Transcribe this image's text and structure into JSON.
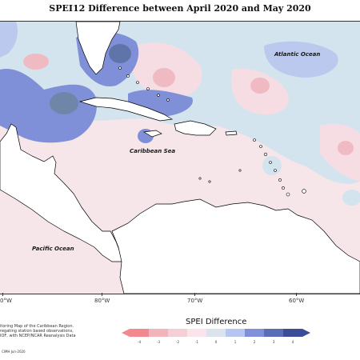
{
  "title": "SPEI12 Difference between April 2020 and May 2020",
  "map": {
    "labels": {
      "atlantic": "Atlantic Ocean",
      "caribbean": "Caribbean Sea",
      "pacific": "Pacific Ocean"
    },
    "longitude_ticks": [
      "0°W",
      "80°W",
      "70°W",
      "60°W"
    ],
    "colors": {
      "dark_blue": "#4a5aa6",
      "blue": "#7f90d8",
      "light_blue": "#bcc9ef",
      "pale_blue": "#d3e4ee",
      "slate": "#6f86a8",
      "pale_pink": "#f6dde3",
      "pink": "#f0bac3",
      "salmon": "#e79aa6",
      "land": "#ffffff",
      "coast": "#000000"
    }
  },
  "legend": {
    "title": "SPEI Difference",
    "ticks": [
      "-4",
      "-3",
      "-2",
      "-1",
      "0",
      "1",
      "2",
      "3",
      "4"
    ],
    "colors": [
      "#f08a8f",
      "#f2b4bb",
      "#f4cfd6",
      "#f8e4e9",
      "#dbe4ec",
      "#b7c6ef",
      "#7f90d8",
      "#5a6eb8",
      "#3c4c96"
    ]
  },
  "footnote": [
    "itoring Map of the Caribbean Region.",
    "regating station based observations,",
    "IOF, with NCEP/NCAR Reanalysis Data"
  ],
  "credit": "CIMH Jun-2020"
}
